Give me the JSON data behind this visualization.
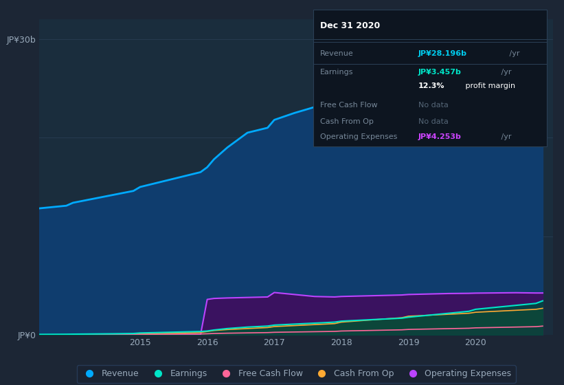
{
  "background_color": "#1c2635",
  "plot_bg_color": "#1a2d3d",
  "years": [
    2013.0,
    2013.3,
    2013.6,
    2013.9,
    2014.0,
    2014.3,
    2014.6,
    2014.9,
    2015.0,
    2015.3,
    2015.6,
    2015.9,
    2016.0,
    2016.1,
    2016.3,
    2016.6,
    2016.9,
    2017.0,
    2017.3,
    2017.6,
    2017.9,
    2018.0,
    2018.3,
    2018.6,
    2018.9,
    2019.0,
    2019.3,
    2019.6,
    2019.9,
    2020.0,
    2020.3,
    2020.6,
    2020.9,
    2021.0
  ],
  "revenue": [
    12.5,
    12.7,
    12.9,
    13.1,
    13.4,
    13.8,
    14.2,
    14.6,
    15.0,
    15.5,
    16.0,
    16.5,
    17.0,
    17.8,
    19.0,
    20.5,
    21.0,
    21.8,
    22.5,
    23.1,
    23.5,
    24.0,
    24.5,
    25.0,
    25.5,
    26.0,
    26.5,
    27.0,
    27.3,
    27.7,
    27.9,
    28.1,
    28.196,
    28.196
  ],
  "earnings": [
    0.05,
    0.05,
    0.06,
    0.07,
    0.08,
    0.1,
    0.12,
    0.15,
    0.2,
    0.25,
    0.3,
    0.35,
    0.4,
    0.5,
    0.65,
    0.8,
    0.9,
    1.0,
    1.1,
    1.2,
    1.3,
    1.4,
    1.5,
    1.6,
    1.7,
    1.8,
    2.0,
    2.2,
    2.4,
    2.6,
    2.8,
    3.0,
    3.2,
    3.457
  ],
  "operating_expenses": [
    0.0,
    0.0,
    0.0,
    0.0,
    0.0,
    0.0,
    0.0,
    0.0,
    0.0,
    0.0,
    0.0,
    0.0,
    3.6,
    3.7,
    3.75,
    3.8,
    3.85,
    4.3,
    4.1,
    3.9,
    3.85,
    3.9,
    3.95,
    4.0,
    4.05,
    4.1,
    4.15,
    4.2,
    4.22,
    4.24,
    4.26,
    4.28,
    4.253,
    4.253
  ],
  "cash_from_op": [
    0.0,
    0.0,
    0.0,
    0.0,
    0.02,
    0.04,
    0.06,
    0.08,
    0.1,
    0.15,
    0.2,
    0.25,
    0.35,
    0.45,
    0.55,
    0.65,
    0.75,
    0.85,
    0.95,
    1.05,
    1.15,
    1.3,
    1.45,
    1.6,
    1.75,
    1.9,
    2.0,
    2.1,
    2.2,
    2.3,
    2.4,
    2.5,
    2.6,
    2.7
  ],
  "free_cash_flow": [
    0.0,
    0.0,
    0.0,
    0.0,
    0.01,
    0.02,
    0.03,
    0.04,
    0.05,
    0.06,
    0.08,
    0.1,
    0.12,
    0.15,
    0.18,
    0.21,
    0.24,
    0.27,
    0.3,
    0.33,
    0.36,
    0.4,
    0.44,
    0.48,
    0.52,
    0.56,
    0.6,
    0.64,
    0.68,
    0.72,
    0.76,
    0.8,
    0.84,
    0.9
  ],
  "revenue_line_color": "#00aaff",
  "revenue_fill_color": "#0f3d6e",
  "earnings_line_color": "#00e5c8",
  "earnings_fill_color": "#004a40",
  "free_cash_flow_line_color": "#ff6699",
  "free_cash_flow_fill_color": "#5a1030",
  "cash_from_op_line_color": "#ffaa33",
  "cash_from_op_fill_color": "#5a3a10",
  "operating_expenses_line_color": "#bb44ff",
  "operating_expenses_fill_color": "#3d1060",
  "ylim": [
    0,
    32
  ],
  "ytick_positions": [
    0,
    10,
    20,
    30
  ],
  "ytick_labels": [
    "JP¥0",
    "",
    "",
    "JP¥30b"
  ],
  "xtick_values": [
    2015,
    2016,
    2017,
    2018,
    2019,
    2020
  ],
  "grid_color": "#2a3f55",
  "text_color": "#99aabb",
  "legend_items": [
    {
      "label": "Revenue",
      "color": "#00aaff"
    },
    {
      "label": "Earnings",
      "color": "#00e5c8"
    },
    {
      "label": "Free Cash Flow",
      "color": "#ff6699"
    },
    {
      "label": "Cash From Op",
      "color": "#ffaa33"
    },
    {
      "label": "Operating Expenses",
      "color": "#bb44ff"
    }
  ],
  "info_box": {
    "bg_color": "#0d1520",
    "border_color": "#2a3f55",
    "title": "Dec 31 2020",
    "title_color": "#ffffff",
    "label_color": "#778899",
    "divider_color": "#2a3f55",
    "rows": [
      {
        "label": "Revenue",
        "value": "JP¥28.196b",
        "suffix": " /yr",
        "value_color": "#00ccee",
        "suffix_color": "#778899"
      },
      {
        "label": "Earnings",
        "value": "JP¥3.457b",
        "suffix": " /yr",
        "value_color": "#00e5c8",
        "suffix_color": "#778899"
      },
      {
        "label": "",
        "value": "12.3%",
        "suffix": " profit margin",
        "value_color": "#ffffff",
        "suffix_color": "#ffffff"
      },
      {
        "label": "Free Cash Flow",
        "value": "No data",
        "suffix": "",
        "value_color": "#556677",
        "suffix_color": ""
      },
      {
        "label": "Cash From Op",
        "value": "No data",
        "suffix": "",
        "value_color": "#556677",
        "suffix_color": ""
      },
      {
        "label": "Operating Expenses",
        "value": "JP¥4.253b",
        "suffix": " /yr",
        "value_color": "#cc44ff",
        "suffix_color": "#778899"
      }
    ]
  }
}
